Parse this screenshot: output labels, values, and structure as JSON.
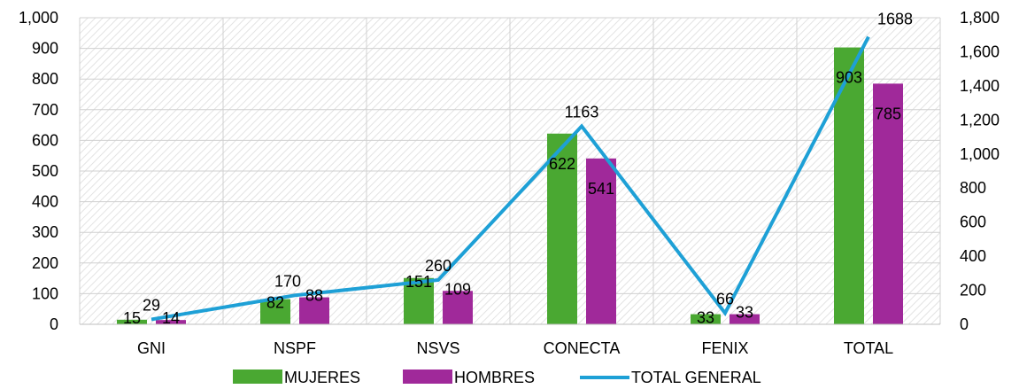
{
  "chart_data": {
    "type": "bar",
    "categories": [
      "GNI",
      "NSPF",
      "NSVS",
      "CONECTA",
      "FENIX",
      "TOTAL"
    ],
    "series": [
      {
        "name": "MUJERES",
        "type": "bar",
        "axis": "left",
        "color": "#4aa832",
        "values": [
          15,
          82,
          151,
          622,
          33,
          903
        ]
      },
      {
        "name": "HOMBRES",
        "type": "bar",
        "axis": "left",
        "color": "#a0299a",
        "values": [
          14,
          88,
          109,
          541,
          33,
          785
        ]
      },
      {
        "name": "TOTAL GENERAL",
        "type": "line",
        "axis": "right",
        "color": "#1ea0d6",
        "values": [
          29,
          170,
          260,
          1163,
          66,
          1688
        ]
      }
    ],
    "y_left": {
      "min": 0,
      "max": 1000,
      "step": 100,
      "tick_labels": [
        "0",
        "100",
        "200",
        "300",
        "400",
        "500",
        "600",
        "700",
        "800",
        "900",
        "1,000"
      ]
    },
    "y_right": {
      "min": 0,
      "max": 1800,
      "step": 200,
      "tick_labels": [
        "0",
        "200",
        "400",
        "600",
        "800",
        "1,000",
        "1,200",
        "1,400",
        "1,600",
        "1,800"
      ]
    },
    "grid": true,
    "plot_background": "diagonal hatch",
    "legend_position": "bottom"
  }
}
